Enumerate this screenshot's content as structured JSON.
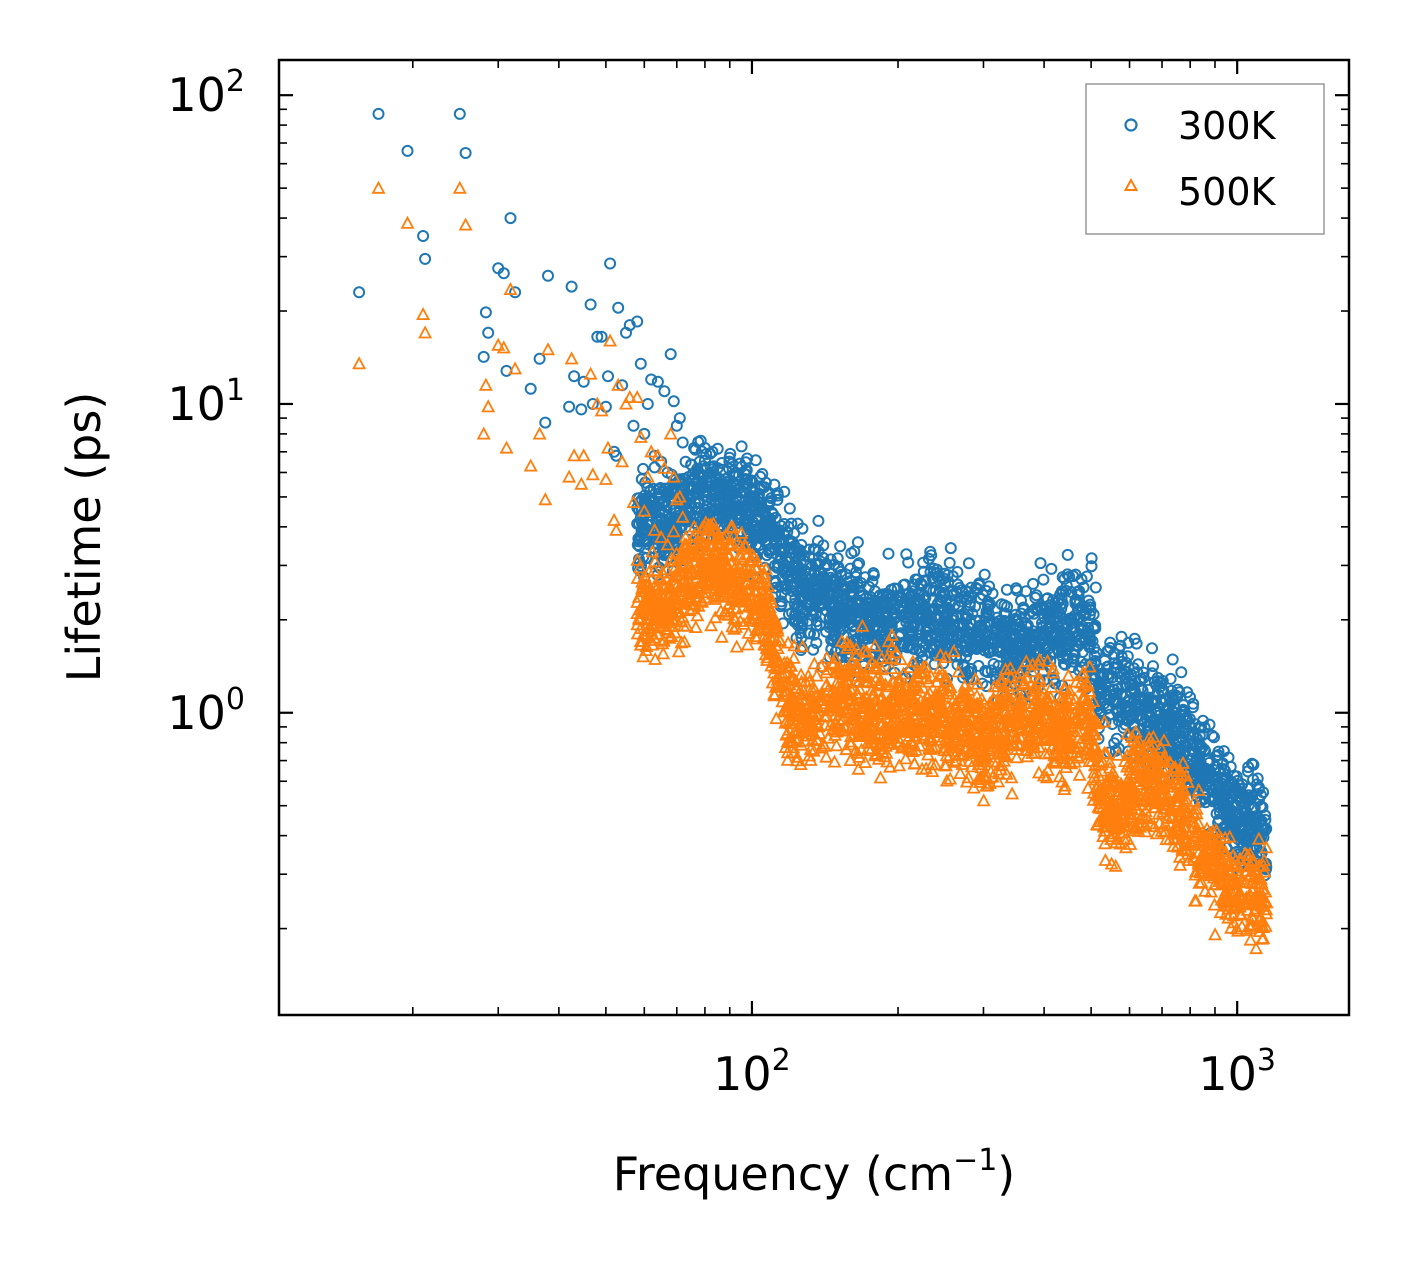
{
  "chart_data": {
    "type": "scatter",
    "title": "",
    "xlabel": {
      "base": "Frequency (cm",
      "sup": "−1",
      "tail": ")"
    },
    "ylabel": "Lifetime (ps)",
    "xscale": "log",
    "yscale": "log",
    "xlim": [
      10.6,
      1700
    ],
    "ylim": [
      0.105,
      130
    ],
    "x_ticks": [
      {
        "value": 100,
        "base": "10",
        "exp": "2"
      },
      {
        "value": 1000,
        "base": "10",
        "exp": "3"
      }
    ],
    "y_ticks": [
      {
        "value": 1,
        "base": "10",
        "exp": "0"
      },
      {
        "value": 10,
        "base": "10",
        "exp": "1"
      },
      {
        "value": 100,
        "base": "10",
        "exp": "2"
      }
    ],
    "legend_position": "top-right",
    "colors": {
      "series_300K": "#1f77b4",
      "series_500K": "#ff7f0e"
    },
    "series": [
      {
        "name": "300K",
        "marker": "circle",
        "color": "#1f77b4",
        "sparse_points": [
          [
            15.5,
            23
          ],
          [
            17,
            87
          ],
          [
            19.5,
            66
          ],
          [
            21,
            35
          ],
          [
            21.2,
            29.5
          ],
          [
            25,
            87
          ],
          [
            25.7,
            65
          ],
          [
            28,
            14.2
          ],
          [
            28.3,
            19.8
          ],
          [
            28.6,
            17
          ],
          [
            30,
            27.5
          ],
          [
            30.8,
            26.5
          ],
          [
            31.2,
            12.8
          ],
          [
            31.8,
            40
          ],
          [
            32.5,
            23
          ],
          [
            35,
            11.2
          ],
          [
            36.5,
            14
          ],
          [
            37.5,
            8.7
          ],
          [
            38,
            26
          ],
          [
            42,
            9.8
          ],
          [
            42.5,
            24
          ],
          [
            43,
            12.3
          ],
          [
            44.5,
            9.6
          ],
          [
            45,
            11.8
          ],
          [
            46.5,
            21
          ],
          [
            47,
            10
          ],
          [
            48,
            16.5
          ],
          [
            49,
            16.5
          ],
          [
            50,
            9.8
          ],
          [
            50.5,
            12.3
          ],
          [
            51,
            28.5
          ],
          [
            52,
            7
          ],
          [
            52.5,
            6.8
          ],
          [
            53,
            20.5
          ],
          [
            54,
            11.5
          ],
          [
            55,
            17
          ],
          [
            56,
            18
          ],
          [
            57,
            8.5
          ],
          [
            58,
            18.5
          ],
          [
            59,
            13.5
          ],
          [
            60,
            8
          ],
          [
            61,
            10
          ],
          [
            62,
            12
          ],
          [
            63,
            6.8
          ],
          [
            64,
            11.8
          ],
          [
            65,
            6.5
          ],
          [
            66,
            11
          ],
          [
            67,
            6
          ],
          [
            68,
            14.5
          ],
          [
            69,
            10.2
          ],
          [
            70,
            8.5
          ],
          [
            71,
            9
          ],
          [
            72,
            7.5
          ],
          [
            73,
            6.5
          ],
          [
            74,
            5.8
          ],
          [
            76,
            7.2
          ],
          [
            78,
            6.5
          ],
          [
            80,
            7.2
          ],
          [
            82,
            6.9
          ],
          [
            85,
            6.2
          ]
        ],
        "trend": [
          [
            58,
            4.2
          ],
          [
            65,
            4.0
          ],
          [
            72,
            4.5
          ],
          [
            78,
            5.3
          ],
          [
            85,
            4.9
          ],
          [
            95,
            4.7
          ],
          [
            105,
            4.1
          ],
          [
            112,
            3.6
          ],
          [
            118,
            3.1
          ],
          [
            125,
            2.6
          ],
          [
            140,
            2.3
          ],
          [
            160,
            2.15
          ],
          [
            185,
            2.0
          ],
          [
            210,
            2.0
          ],
          [
            240,
            2.05
          ],
          [
            270,
            1.9
          ],
          [
            300,
            1.85
          ],
          [
            330,
            1.65
          ],
          [
            360,
            1.7
          ],
          [
            400,
            1.8
          ],
          [
            440,
            1.85
          ],
          [
            480,
            1.9
          ],
          [
            500,
            1.85
          ],
          [
            520,
            1.25
          ],
          [
            560,
            1.2
          ],
          [
            600,
            1.15
          ],
          [
            660,
            0.95
          ],
          [
            720,
            0.95
          ],
          [
            800,
            0.8
          ],
          [
            880,
            0.62
          ],
          [
            960,
            0.5
          ],
          [
            1040,
            0.45
          ],
          [
            1110,
            0.42
          ],
          [
            1150,
            0.38
          ]
        ]
      },
      {
        "name": "500K",
        "marker": "triangle",
        "color": "#ff7f0e",
        "sparse_points": [
          [
            15.5,
            13.5
          ],
          [
            17,
            50
          ],
          [
            19.5,
            38.5
          ],
          [
            21,
            19.5
          ],
          [
            21.2,
            17
          ],
          [
            25,
            50
          ],
          [
            25.7,
            38
          ],
          [
            28,
            8
          ],
          [
            28.3,
            11.5
          ],
          [
            28.6,
            9.8
          ],
          [
            30,
            15.5
          ],
          [
            30.8,
            15.2
          ],
          [
            31.2,
            7.2
          ],
          [
            31.8,
            23.5
          ],
          [
            32.5,
            13
          ],
          [
            35,
            6.3
          ],
          [
            36.5,
            8
          ],
          [
            37.5,
            4.9
          ],
          [
            38,
            15
          ],
          [
            42,
            5.8
          ],
          [
            42.5,
            14
          ],
          [
            43,
            6.8
          ],
          [
            44.5,
            5.5
          ],
          [
            45,
            6.8
          ],
          [
            46.5,
            12.5
          ],
          [
            47,
            5.9
          ],
          [
            48,
            10
          ],
          [
            49,
            9.5
          ],
          [
            50,
            5.7
          ],
          [
            50.5,
            7.2
          ],
          [
            51,
            16
          ],
          [
            52,
            4.2
          ],
          [
            52.5,
            3.9
          ],
          [
            53,
            11.5
          ],
          [
            54,
            6.5
          ],
          [
            55,
            10
          ],
          [
            56,
            10.5
          ],
          [
            57,
            4.8
          ],
          [
            58,
            10.5
          ],
          [
            59,
            7.8
          ],
          [
            60,
            4.5
          ],
          [
            61,
            5.8
          ],
          [
            62,
            7
          ],
          [
            63,
            3.9
          ],
          [
            64,
            6.8
          ],
          [
            65,
            3.7
          ],
          [
            66,
            6.2
          ],
          [
            67,
            3.5
          ],
          [
            68,
            8
          ],
          [
            69,
            5.8
          ],
          [
            70,
            4.9
          ],
          [
            71,
            5
          ],
          [
            72,
            4.3
          ],
          [
            73,
            3.7
          ],
          [
            74,
            3.3
          ],
          [
            76,
            4
          ],
          [
            78,
            3.7
          ],
          [
            80,
            4
          ],
          [
            82,
            3.9
          ],
          [
            85,
            3.5
          ]
        ],
        "trend": [
          [
            58,
            2.3
          ],
          [
            65,
            2.1
          ],
          [
            72,
            2.5
          ],
          [
            78,
            3.0
          ],
          [
            85,
            2.8
          ],
          [
            95,
            2.6
          ],
          [
            105,
            2.2
          ],
          [
            112,
            1.6
          ],
          [
            118,
            1.05
          ],
          [
            125,
            1.0
          ],
          [
            140,
            1.05
          ],
          [
            160,
            1.1
          ],
          [
            185,
            1.0
          ],
          [
            210,
            1.05
          ],
          [
            240,
            1.0
          ],
          [
            270,
            0.9
          ],
          [
            300,
            0.85
          ],
          [
            330,
            0.9
          ],
          [
            360,
            0.95
          ],
          [
            400,
            0.95
          ],
          [
            440,
            0.9
          ],
          [
            480,
            0.95
          ],
          [
            500,
            0.9
          ],
          [
            520,
            0.52
          ],
          [
            560,
            0.5
          ],
          [
            600,
            0.55
          ],
          [
            660,
            0.6
          ],
          [
            720,
            0.55
          ],
          [
            800,
            0.42
          ],
          [
            880,
            0.32
          ],
          [
            960,
            0.27
          ],
          [
            1040,
            0.26
          ],
          [
            1110,
            0.25
          ],
          [
            1150,
            0.24
          ]
        ]
      }
    ]
  }
}
